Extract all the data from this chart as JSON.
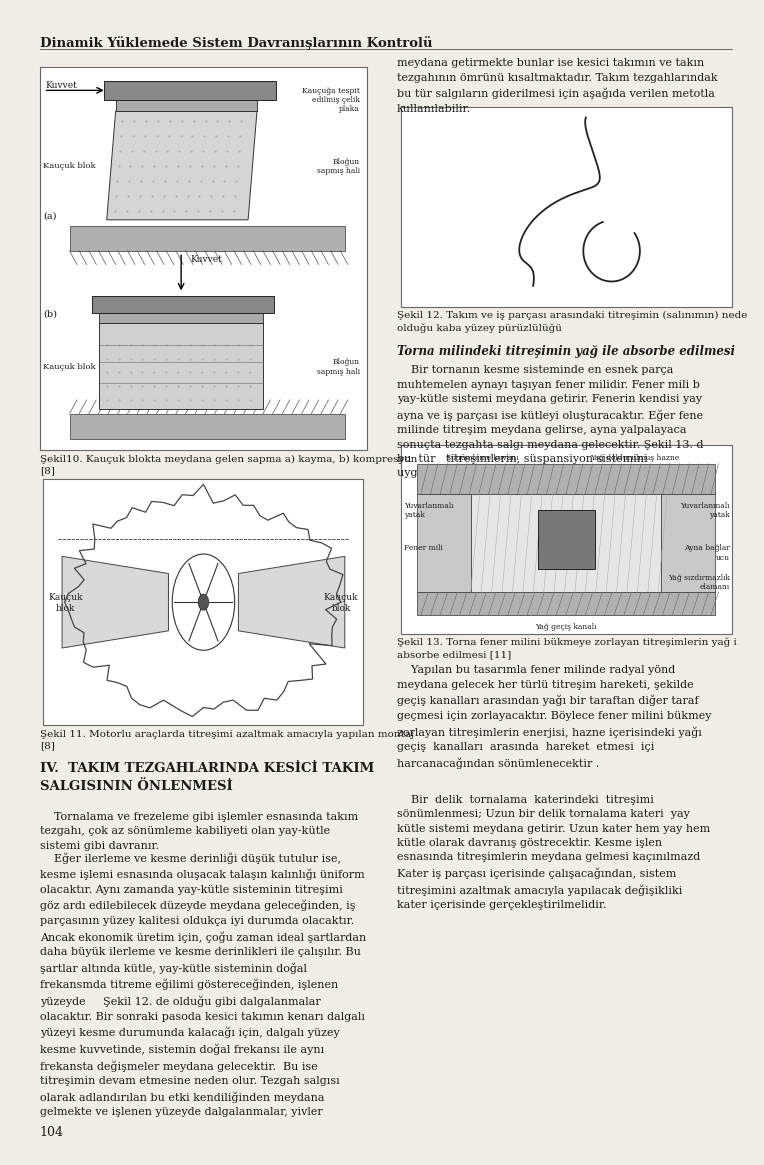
{
  "page_title": "Dinamik Yüklemede Sistem Davranışlarının Kontrolü",
  "page_number": "104",
  "background_color": "#f0ede8",
  "text_color": "#1a1a1a",
  "fig10_caption": "Şekil10. Kauçuk blokta meydana gelen sapma a) kayma, b) kompresyon\n[8]",
  "fig11_caption": "Şekil 11. Motorlu araçlarda titreşimi azaltmak amacıyla yapılan montaj\n[8]",
  "fig12_caption": "Şekil 12. Takım ve iş parçası arasındaki titreşimin (salınımın) nede\nolduğu kaba yüzey pürüzlülüğü",
  "fig13_caption": "Şekil 13. Torna fener milini bükmeye zorlayan titreşimlerin yağ i\nabsorbe edilmesi [11]",
  "section4_title": "IV.  TAKIM TEZGAHLARINDA KESİCİ TAKIM\nSALGISININ ÖNLENMESİ",
  "para1": "    Tornalama ve frezeleme gibi işlemler esnasında takım\ntezgahı, çok az sönümleme kabiliyeti olan yay-kütle\nsistemi gibi davranır.",
  "para2": "    Eğer ilerleme ve kesme derinliği düşük tutulur ise,\nkesme işlemi esnasında oluşacak talaşın kalınlığı üniform\nolacaktır. Aynı zamanda yay-kütle sisteminin titreşimi\ngöz ardı edilebilecek düzeyde meydana geleceğinden, iş\nparçasının yüzey kalitesi oldukça iyi durumda olacaktır.\nAncak ekonomik üretim için, çoğu zaman ideal şartlardan\ndaha büyük ilerleme ve kesme derinlikleri ile çalışılır. Bu\nşartlar altında kütle, yay-kütle sisteminin doğal\nfrekansmda titreme eğilimi göstereceğinden, işlenen\nyüzeyde     Şekil 12. de olduğu gibi dalgalanmalar\nolacaktır. Bir sonraki pasoda kesici takımın kenarı dalgalı\nyüzeyi kesme durumunda kalacağı için, dalgalı yüzey\nkesme kuvvetinde, sistemin doğal frekansı ile aynı\nfrekansta değişmeler meydana gelecektir.  Bu ise\ntitreşimin devam etmesine neden olur. Tezgah salgısı\nolarak adlandırılan bu etki kendiliğinden meydana\ngelmekte ve işlenen yüzeyde dalgalanmalar, yivler",
  "right_para1": "meydana getirmekte bunlar ise kesici takımın ve takın\ntezgahının ömrünü kısaltmaktadır. Takım tezgahlarındak\nbu tür salgıların giderilmesi için aşağıda verilen metotla\nkullanılabilir.",
  "right_para2_body": "    Bir tornanın kesme sisteminde en esnek parça\nmuhtemelen aynayı taşıyan fener milidir. Fener mili b\nyay-kütle sistemi meydana getirir. Fenerin kendisi yay\nayna ve iş parçası ise kütleyi oluşturacaktır. Eğer fene\nmilinde titreşim meydana gelirse, ayna yalpalayaca\nsonuçta tezgahta salgı meydana gelecektir. Şekil 13. d\nbu  tür   titreşimlerin, süspansiyon sistemini\nuygulanmasıyla sönümlenmesi gösterilmektedir.",
  "right_para3": "    Yapılan bu tasarımla fener milinde radyal yönd\nmeydana gelecek her türlü titreşim hareketi, şekilde\ngeçiş kanalları arasından yağı bir taraftan diğer taraf\ngeçmesi için zorlayacaktır. Böylece fener milini bükmey\nzorlayan titreşimlerin enerjisi, hazne içerisindeki yağı\ngeçiş  kanalları  arasında  hareket  etmesi  içi\nharcanacağından sönümlenecektir .",
  "right_para4": "    Bir  delik  tornalama  katerindeki  titreşimi\nsönümlenmesi; Uzun bir delik tornalama kateri  yay\nkütle sistemi meydana getirir. Uzun kater hem yay hem\nkütle olarak davranış göstrecektir. Kesme işlen\nesnasında titreşimlerin meydana gelmesi kaçınılmazd\nKater iş parçası içerisinde çalışacağından, sistem\ntitreşimini azaltmak amacıyla yapılacak değişikliki\nkater içerisinde gerçekleştirilmelidir."
}
